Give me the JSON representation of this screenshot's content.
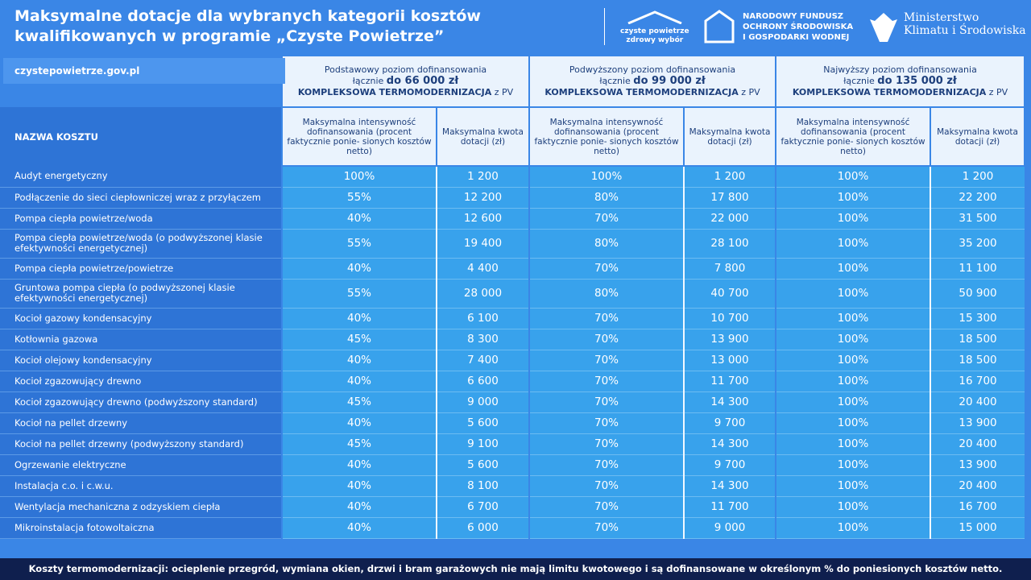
{
  "header": {
    "title_lines": [
      "Maksymalne dotacje dla wybranych kategorii kosztów",
      "kwalifikowanych w programie „Czyste Powietrze”"
    ],
    "logos": {
      "cp": [
        "czyste powietrze",
        "zdrowy wybór"
      ],
      "nfos": [
        "NARODOWY FUNDUSZ",
        "OCHRONY ŚRODOWISKA",
        "I GOSPODARKI WODNEJ"
      ],
      "ministry": [
        "Ministerstwo",
        "Klimatu i Środowiska"
      ]
    }
  },
  "url": "czystepowietrze.gov.pl",
  "table": {
    "levels": [
      {
        "name": "Podstawowy poziom dofinansowania",
        "prefix": "łącznie",
        "amount": "do  66 000 zł",
        "scope": "KOMPLEKSOWA TERMOMODERNIZACJA",
        "suffix": "z PV"
      },
      {
        "name": "Podwyższony poziom dofinansowania",
        "prefix": "łącznie",
        "amount": "do 99 000 zł",
        "scope": "KOMPLEKSOWA TERMOMODERNIZACJA",
        "suffix": "z PV"
      },
      {
        "name": "Najwyższy poziom dofinansowania",
        "prefix": "łącznie",
        "amount": "do 135 000 zł",
        "scope": "KOMPLEKSOWA TERMOMODERNIZACJA",
        "suffix": "z PV"
      }
    ],
    "name_header": "NAZWA KOSZTU",
    "pct_header": "Maksymalna intensywność dofinansowania (procent faktycznie ponie- sionych kosztów netto)",
    "amount_header": "Maksymalna kwota dotacji (zł)",
    "rows": [
      [
        "Audyt energetyczny",
        "100%",
        "1 200",
        "100%",
        "1 200",
        "100%",
        "1 200"
      ],
      [
        "Podłączenie do sieci ciepłowniczej wraz z przyłączem",
        "55%",
        "12 200",
        "80%",
        "17 800",
        "100%",
        "22 200"
      ],
      [
        "Pompa ciepła powietrze/woda",
        "40%",
        "12 600",
        "70%",
        "22 000",
        "100%",
        "31 500"
      ],
      [
        "Pompa ciepła powietrze/woda (o podwyższonej klasie efektywności energetycznej)",
        "55%",
        "19 400",
        "80%",
        "28 100",
        "100%",
        "35 200"
      ],
      [
        "Pompa ciepła powietrze/powietrze",
        "40%",
        "4 400",
        "70%",
        "7 800",
        "100%",
        "11 100"
      ],
      [
        "Gruntowa pompa ciepła (o podwyższonej klasie efektywności energetycznej)",
        "55%",
        "28 000",
        "80%",
        "40 700",
        "100%",
        "50 900"
      ],
      [
        "Kocioł gazowy kondensacyjny",
        "40%",
        "6 100",
        "70%",
        "10 700",
        "100%",
        "15 300"
      ],
      [
        "Kotłownia gazowa",
        "45%",
        "8 300",
        "70%",
        "13 900",
        "100%",
        "18 500"
      ],
      [
        "Kocioł olejowy kondensacyjny",
        "40%",
        "7 400",
        "70%",
        "13 000",
        "100%",
        "18 500"
      ],
      [
        "Kocioł zgazowujący drewno",
        "40%",
        "6 600",
        "70%",
        "11 700",
        "100%",
        "16 700"
      ],
      [
        "Kocioł zgazowujący drewno (podwyższony standard)",
        "45%",
        "9 000",
        "70%",
        "14 300",
        "100%",
        "20 400"
      ],
      [
        "Kocioł na pellet drzewny",
        "40%",
        "5 600",
        "70%",
        "9 700",
        "100%",
        "13 900"
      ],
      [
        "Kocioł na pellet drzewny (podwyższony standard)",
        "45%",
        "9 100",
        "70%",
        "14 300",
        "100%",
        "20 400"
      ],
      [
        "Ogrzewanie elektryczne",
        "40%",
        "5 600",
        "70%",
        "9 700",
        "100%",
        "13 900"
      ],
      [
        "Instalacja c.o. i c.w.u.",
        "40%",
        "8 100",
        "70%",
        "14 300",
        "100%",
        "20 400"
      ],
      [
        "Wentylacja mechaniczna z odzyskiem ciepła",
        "40%",
        "6 700",
        "70%",
        "11 700",
        "100%",
        "16 700"
      ],
      [
        "Mikroinstalacja fotowoltaiczna",
        "40%",
        "6 000",
        "70%",
        "9 000",
        "100%",
        "15 000"
      ]
    ]
  },
  "footer": "Koszty  termomodernizacji: ocieplenie przegród, wymiana okien, drzwi i bram garażowych nie mają limitu kwotowego i są dofinansowane w określonym % do poniesionych kosztów netto."
}
